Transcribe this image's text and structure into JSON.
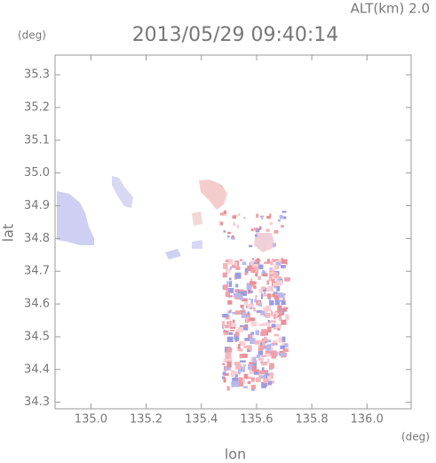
{
  "chart_data": {
    "type": "map",
    "title": "2013/05/29 09:40:14",
    "annotation": "ALT(km) 2.0",
    "x_label": "lon",
    "y_label": "lat",
    "x_unit": "(deg)",
    "y_unit": "(deg)",
    "xlim": [
      134.87,
      136.16
    ],
    "ylim": [
      34.28,
      35.36
    ],
    "xticks": [
      {
        "value": 135,
        "label": "135.0"
      },
      135.2,
      135.4,
      135.6,
      135.8,
      {
        "value": 136,
        "label": "136.0"
      }
    ],
    "yticks": [
      {
        "value": 34.3,
        "label": "34.3"
      },
      34.4,
      34.5,
      34.6,
      34.7,
      34.8,
      34.9,
      {
        "value": 35,
        "label": "35.0"
      },
      35.1,
      35.2,
      35.3
    ]
  }
}
